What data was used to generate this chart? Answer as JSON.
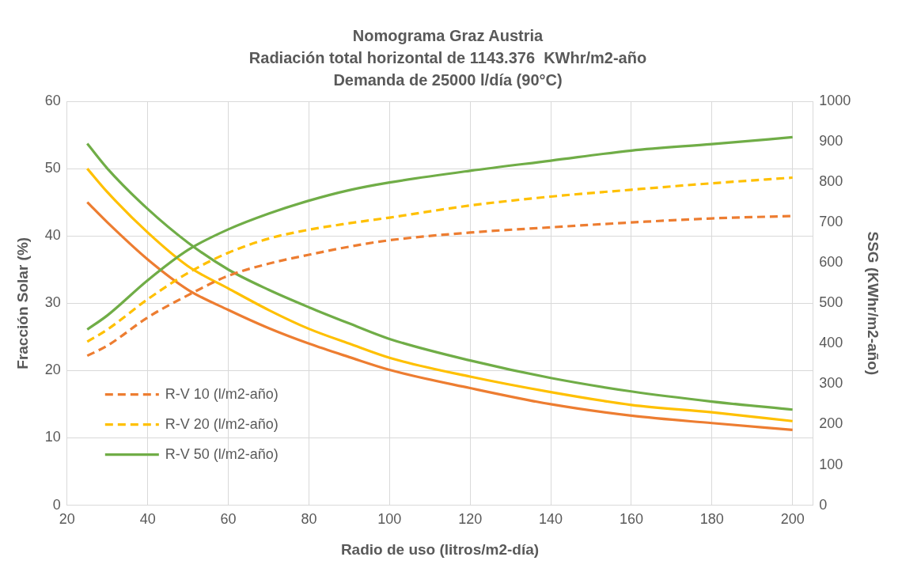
{
  "chart_data": {
    "type": "line",
    "title": "Nomograma Graz Austria\nRadiación total horizontal de 1143.376  KWhr/m2-año\nDemanda de 25000 l/día (90°C)",
    "xlabel": "Radio de uso (litros/m2-día)",
    "ylabel": "Fracción Solar (%)",
    "y2label": "SSG (KWhr/m2-año)",
    "x": [
      25,
      30,
      40,
      50,
      60,
      70,
      80,
      90,
      100,
      120,
      140,
      160,
      180,
      200
    ],
    "xlim": [
      20,
      205
    ],
    "xticks": [
      20,
      40,
      60,
      80,
      100,
      120,
      140,
      160,
      180,
      200
    ],
    "ylim": [
      0,
      60
    ],
    "yticks": [
      0,
      10,
      20,
      30,
      40,
      50,
      60
    ],
    "y2lim": [
      0,
      1000
    ],
    "y2ticks": [
      0,
      100,
      200,
      300,
      400,
      500,
      600,
      700,
      800,
      900,
      1000
    ],
    "grid": true,
    "legend": "bottom left",
    "marker": "none",
    "series": [
      {
        "name": "R-V 10 (l/m2-año)",
        "color": "#ed7d31",
        "line_style": "dashed",
        "axis": "y2",
        "values": [
          370,
          395,
          465,
          520,
          568,
          598,
          620,
          640,
          656,
          675,
          688,
          700,
          710,
          716
        ]
      },
      {
        "name": "R-V 20 (l/m2-año)",
        "color": "#ffc000",
        "line_style": "dashed",
        "axis": "y2",
        "values": [
          405,
          435,
          510,
          575,
          625,
          660,
          682,
          698,
          712,
          742,
          764,
          781,
          797,
          811
        ]
      },
      {
        "name": "R-V 50 (l/m2-año)",
        "color": "#70ad47",
        "line_style": "solid",
        "axis": "y2",
        "values": [
          435,
          470,
          557,
          632,
          683,
          722,
          754,
          780,
          799,
          828,
          853,
          878,
          894,
          911
        ]
      },
      {
        "color": "#ed7d31",
        "line_style": "solid",
        "values": [
          45,
          42,
          36.5,
          32,
          29,
          26.3,
          24,
          22,
          20.1,
          17.4,
          15,
          13.3,
          12.2,
          11.2
        ]
      },
      {
        "color": "#ffc000",
        "line_style": "solid",
        "values": [
          50,
          46.5,
          40.5,
          35.5,
          32.2,
          29,
          26.2,
          24,
          21.9,
          19.1,
          16.8,
          14.9,
          13.8,
          12.5
        ]
      },
      {
        "color": "#70ad47",
        "line_style": "solid",
        "values": [
          53.7,
          50,
          44,
          39,
          35,
          32,
          29.4,
          27,
          24.7,
          21.5,
          18.9,
          16.9,
          15.4,
          14.2
        ]
      }
    ]
  }
}
